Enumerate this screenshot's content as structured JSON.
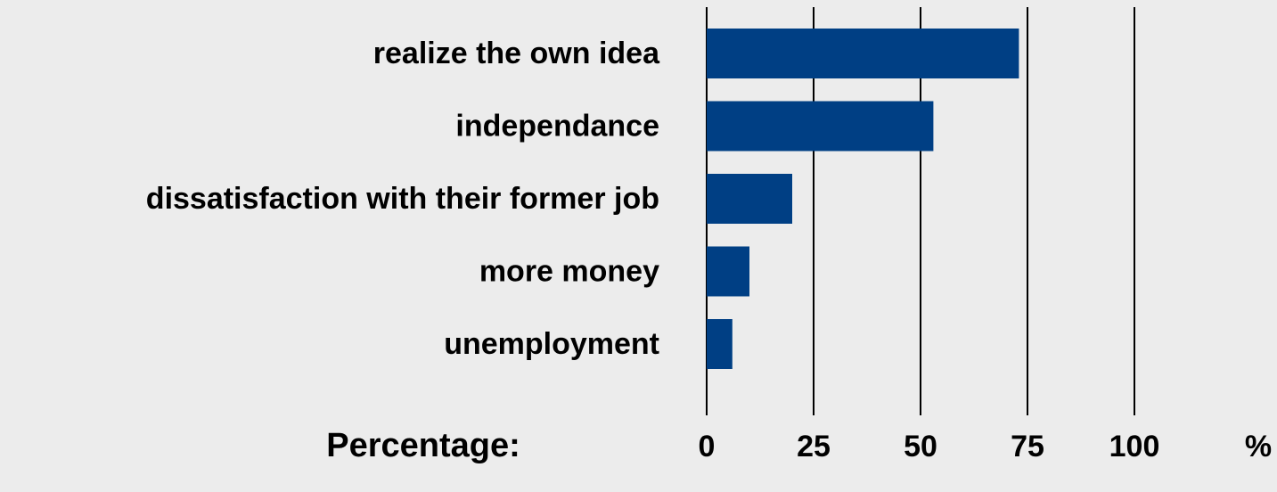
{
  "chart_data": {
    "type": "bar",
    "orientation": "horizontal",
    "categories": [
      "realize the own idea",
      "independance",
      "dissatisfaction with their former job",
      "more money",
      "unemployment"
    ],
    "values": [
      73,
      53,
      20,
      10,
      6
    ],
    "xlabel": "Percentage:",
    "unit_label": "%",
    "ticks": [
      "0",
      "25",
      "50",
      "75",
      "100"
    ],
    "xlim": [
      0,
      100
    ],
    "grid": true,
    "colors": {
      "bar": "#003f84",
      "background": "#ececec",
      "gridline": "#000000"
    }
  }
}
